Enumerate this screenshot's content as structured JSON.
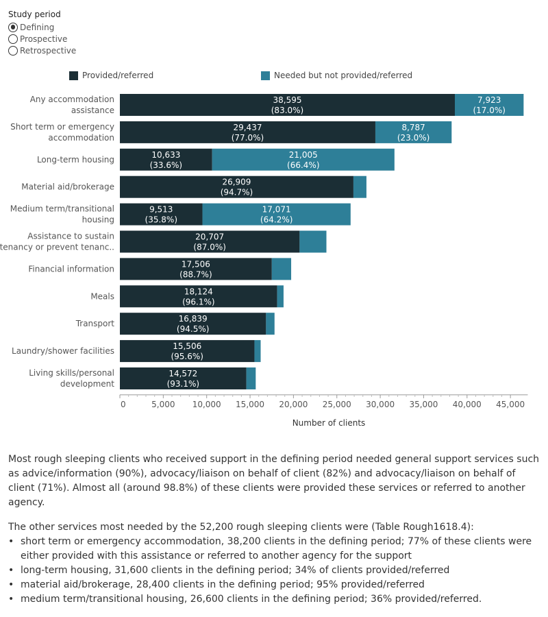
{
  "filter": {
    "title": "Study period",
    "options": [
      {
        "label": "Defining",
        "selected": true
      },
      {
        "label": "Prospective",
        "selected": false
      },
      {
        "label": "Retrospective",
        "selected": false
      }
    ]
  },
  "colors": {
    "provided": "#1b2e35",
    "needed": "#2e7f98",
    "axis": "#999999",
    "label_light": "#ffffff"
  },
  "chart_data": {
    "type": "bar",
    "orientation": "horizontal",
    "stacked": true,
    "title": "",
    "xlabel": "Number of clients",
    "ylabel": "",
    "xlim": [
      0,
      47000
    ],
    "ticks": [
      0,
      5000,
      10000,
      15000,
      20000,
      25000,
      30000,
      35000,
      40000,
      45000
    ],
    "tick_labels": [
      "0",
      "5,000",
      "10,000",
      "15,000",
      "20,000",
      "25,000",
      "30,000",
      "35,000",
      "40,000",
      "45,000"
    ],
    "legend_position": "top",
    "categories": [
      [
        "Any accommodation",
        "assistance"
      ],
      [
        "Short term or emergency",
        "accommodation"
      ],
      [
        "Long-term housing"
      ],
      [
        "Material aid/brokerage"
      ],
      [
        "Medium term/transitional",
        "housing"
      ],
      [
        "Assistance to sustain",
        "tenancy or prevent tenanc.."
      ],
      [
        "Financial information"
      ],
      [
        "Meals"
      ],
      [
        "Transport"
      ],
      [
        "Laundry/shower facilities"
      ],
      [
        "Living skills/personal",
        "development"
      ]
    ],
    "series": [
      {
        "name": "Provided/referred",
        "values": [
          38595,
          29437,
          10633,
          26909,
          9513,
          20707,
          17506,
          18124,
          16839,
          15506,
          14572
        ],
        "value_labels": [
          "38,595",
          "29,437",
          "10,633",
          "26,909",
          "9,513",
          "20,707",
          "17,506",
          "18,124",
          "16,839",
          "15,506",
          "14,572"
        ],
        "pct_labels": [
          "(83.0%)",
          "(77.0%)",
          "(33.6%)",
          "(94.7%)",
          "(35.8%)",
          "(87.0%)",
          "(88.7%)",
          "(96.1%)",
          "(94.5%)",
          "(95.6%)",
          "(93.1%)"
        ]
      },
      {
        "name": "Needed but not provided/referred",
        "values": [
          7923,
          8787,
          21005,
          1500,
          17071,
          3090,
          2230,
          735,
          980,
          715,
          1080
        ],
        "value_labels": [
          "7,923",
          "8,787",
          "21,005",
          "",
          "17,071",
          "",
          "",
          "",
          "",
          "",
          ""
        ],
        "pct_labels": [
          "(17.0%)",
          "(23.0%)",
          "(66.4%)",
          "",
          "(64.2%)",
          "",
          "",
          "",
          "",
          "",
          ""
        ]
      }
    ]
  },
  "narrative": {
    "para1": "Most rough sleeping clients who received support in the defining period needed general support services such as advice/information (90%), advocacy/liaison on behalf of client (82%) and advocacy/liaison on behalf of client (71%). Almost all (around 98.8%) of these clients were provided these services or referred to another agency.",
    "para2": "The other services most needed by the 52,200 rough sleeping clients were (Table Rough1618.4):",
    "bullets": [
      "short term or emergency accommodation, 38,200 clients in the defining period; 77% of these clients were either provided with this assistance or referred to another agency for the support",
      "long-term housing, 31,600 clients in the defining period; 34% of clients provided/referred",
      "material aid/brokerage, 28,400 clients in the defining period; 95% provided/referred",
      "medium term/transitional housing, 26,600 clients in the defining period; 36% provided/referred."
    ]
  }
}
